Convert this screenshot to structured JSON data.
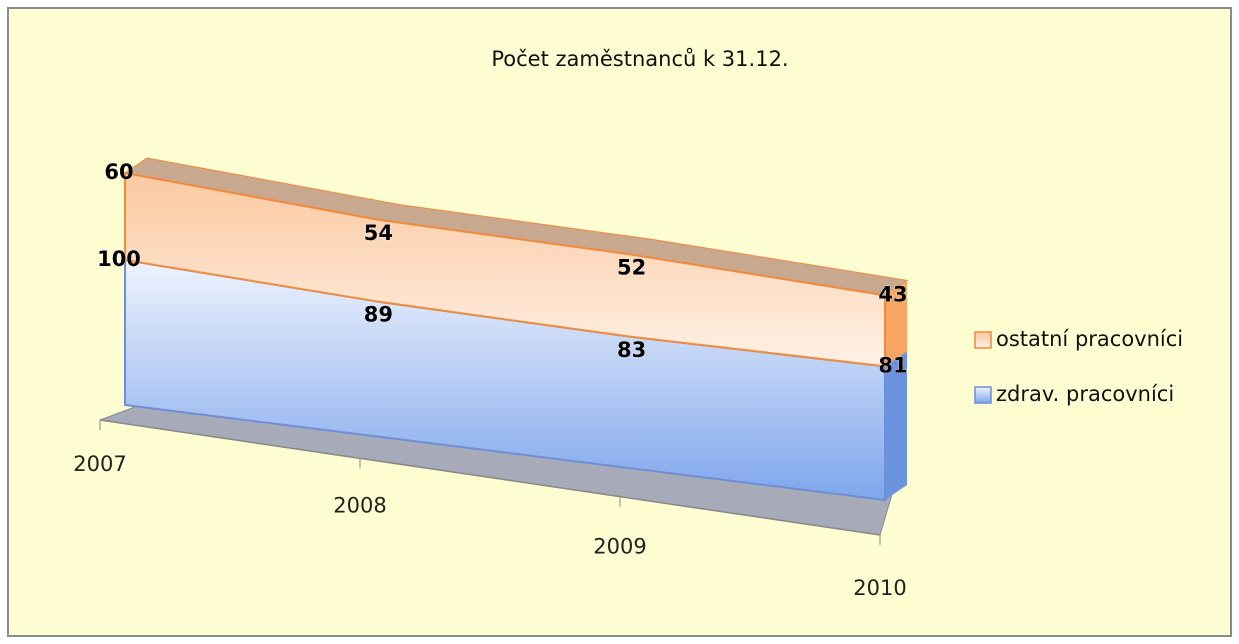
{
  "chart_data": {
    "type": "area",
    "stacked": true,
    "title": "Počet  zaměstnanců k 31.12.",
    "categories": [
      "2007",
      "2008",
      "2009",
      "2010"
    ],
    "series": [
      {
        "name": "zdrav. pracovníci",
        "color": "#8fb3f0",
        "values": [
          100,
          89,
          83,
          81
        ]
      },
      {
        "name": "ostatní pracovníci",
        "color": "#fbc9a0",
        "values": [
          60,
          54,
          52,
          43
        ]
      }
    ],
    "legend": "right"
  }
}
